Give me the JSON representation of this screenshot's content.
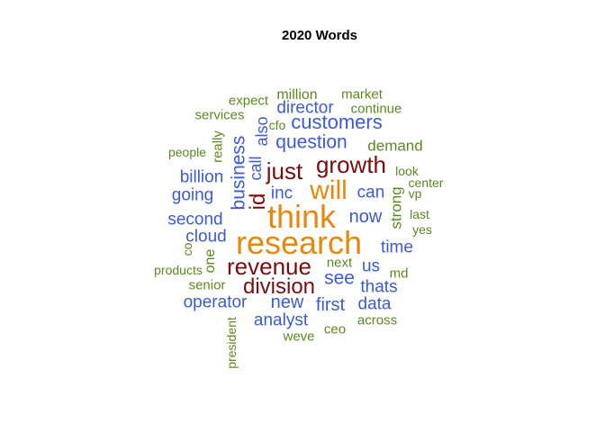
{
  "title": "2020 Words",
  "colors": {
    "tier1": "#E8870E",
    "tier2": "#7A0E0E",
    "tier3": "#3B5BD6",
    "tier4": "#5A8A1E"
  },
  "words": [
    {
      "text": "think",
      "tier": 1
    },
    {
      "text": "research",
      "tier": 1
    },
    {
      "text": "will",
      "tier": 1
    },
    {
      "text": "growth",
      "tier": 2
    },
    {
      "text": "just",
      "tier": 2
    },
    {
      "text": "revenue",
      "tier": 2
    },
    {
      "text": "division",
      "tier": 2
    },
    {
      "text": "id",
      "tier": 2
    },
    {
      "text": "customers",
      "tier": 3
    },
    {
      "text": "question",
      "tier": 3
    },
    {
      "text": "director",
      "tier": 3
    },
    {
      "text": "business",
      "tier": 3
    },
    {
      "text": "call",
      "tier": 3
    },
    {
      "text": "also",
      "tier": 3
    },
    {
      "text": "billion",
      "tier": 3
    },
    {
      "text": "going",
      "tier": 3
    },
    {
      "text": "second",
      "tier": 3
    },
    {
      "text": "cloud",
      "tier": 3
    },
    {
      "text": "inc",
      "tier": 3
    },
    {
      "text": "can",
      "tier": 3
    },
    {
      "text": "now",
      "tier": 3
    },
    {
      "text": "time",
      "tier": 3
    },
    {
      "text": "us",
      "tier": 3
    },
    {
      "text": "see",
      "tier": 3
    },
    {
      "text": "thats",
      "tier": 3
    },
    {
      "text": "first",
      "tier": 3
    },
    {
      "text": "data",
      "tier": 3
    },
    {
      "text": "new",
      "tier": 3
    },
    {
      "text": "operator",
      "tier": 3
    },
    {
      "text": "analyst",
      "tier": 3
    },
    {
      "text": "million",
      "tier": 4
    },
    {
      "text": "expect",
      "tier": 4
    },
    {
      "text": "market",
      "tier": 4
    },
    {
      "text": "continue",
      "tier": 4
    },
    {
      "text": "services",
      "tier": 4
    },
    {
      "text": "cfo",
      "tier": 4
    },
    {
      "text": "really",
      "tier": 4
    },
    {
      "text": "people",
      "tier": 4
    },
    {
      "text": "demand",
      "tier": 4
    },
    {
      "text": "look",
      "tier": 4
    },
    {
      "text": "center",
      "tier": 4
    },
    {
      "text": "vp",
      "tier": 4
    },
    {
      "text": "strong",
      "tier": 4
    },
    {
      "text": "last",
      "tier": 4
    },
    {
      "text": "yes",
      "tier": 4
    },
    {
      "text": "co",
      "tier": 4
    },
    {
      "text": "one",
      "tier": 4
    },
    {
      "text": "products",
      "tier": 4
    },
    {
      "text": "next",
      "tier": 4
    },
    {
      "text": "md",
      "tier": 4
    },
    {
      "text": "senior",
      "tier": 4
    },
    {
      "text": "ceo",
      "tier": 4
    },
    {
      "text": "across",
      "tier": 4
    },
    {
      "text": "weve",
      "tier": 4
    },
    {
      "text": "president",
      "tier": 4
    }
  ]
}
